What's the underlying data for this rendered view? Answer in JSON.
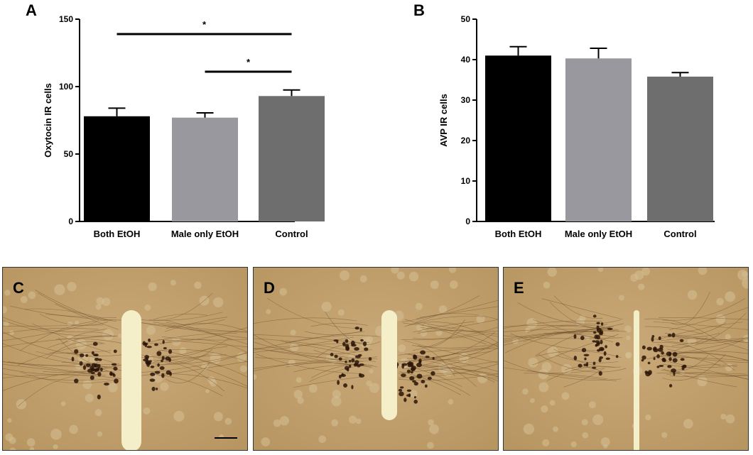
{
  "chart_data": [
    {
      "panel": "A",
      "type": "bar",
      "categories": [
        "Both EtOH",
        "Male only EtOH",
        "Control"
      ],
      "values": [
        78,
        77,
        93
      ],
      "errors": [
        6,
        3.5,
        4.5
      ],
      "colors": [
        "#000000",
        "#98989e",
        "#6e6e6e"
      ],
      "ylabel": "Oxytocin IR cells",
      "ylim": [
        0,
        150
      ],
      "yticks": [
        0,
        50,
        100,
        150
      ],
      "significance": [
        {
          "from": 0,
          "to": 2,
          "label": "*"
        },
        {
          "from": 1,
          "to": 2,
          "label": "*"
        }
      ]
    },
    {
      "panel": "B",
      "type": "bar",
      "categories": [
        "Both EtOH",
        "Male only EtOH",
        "Control"
      ],
      "values": [
        41,
        40.3,
        35.8
      ],
      "errors": [
        2.2,
        2.5,
        1.0
      ],
      "colors": [
        "#000000",
        "#98989e",
        "#6e6e6e"
      ],
      "ylabel": "AVP IR cells",
      "ylim": [
        0,
        50
      ],
      "yticks": [
        0,
        10,
        20,
        30,
        40,
        50
      ]
    }
  ],
  "micrographs": [
    {
      "label": "C"
    },
    {
      "label": "D"
    },
    {
      "label": "E"
    }
  ]
}
